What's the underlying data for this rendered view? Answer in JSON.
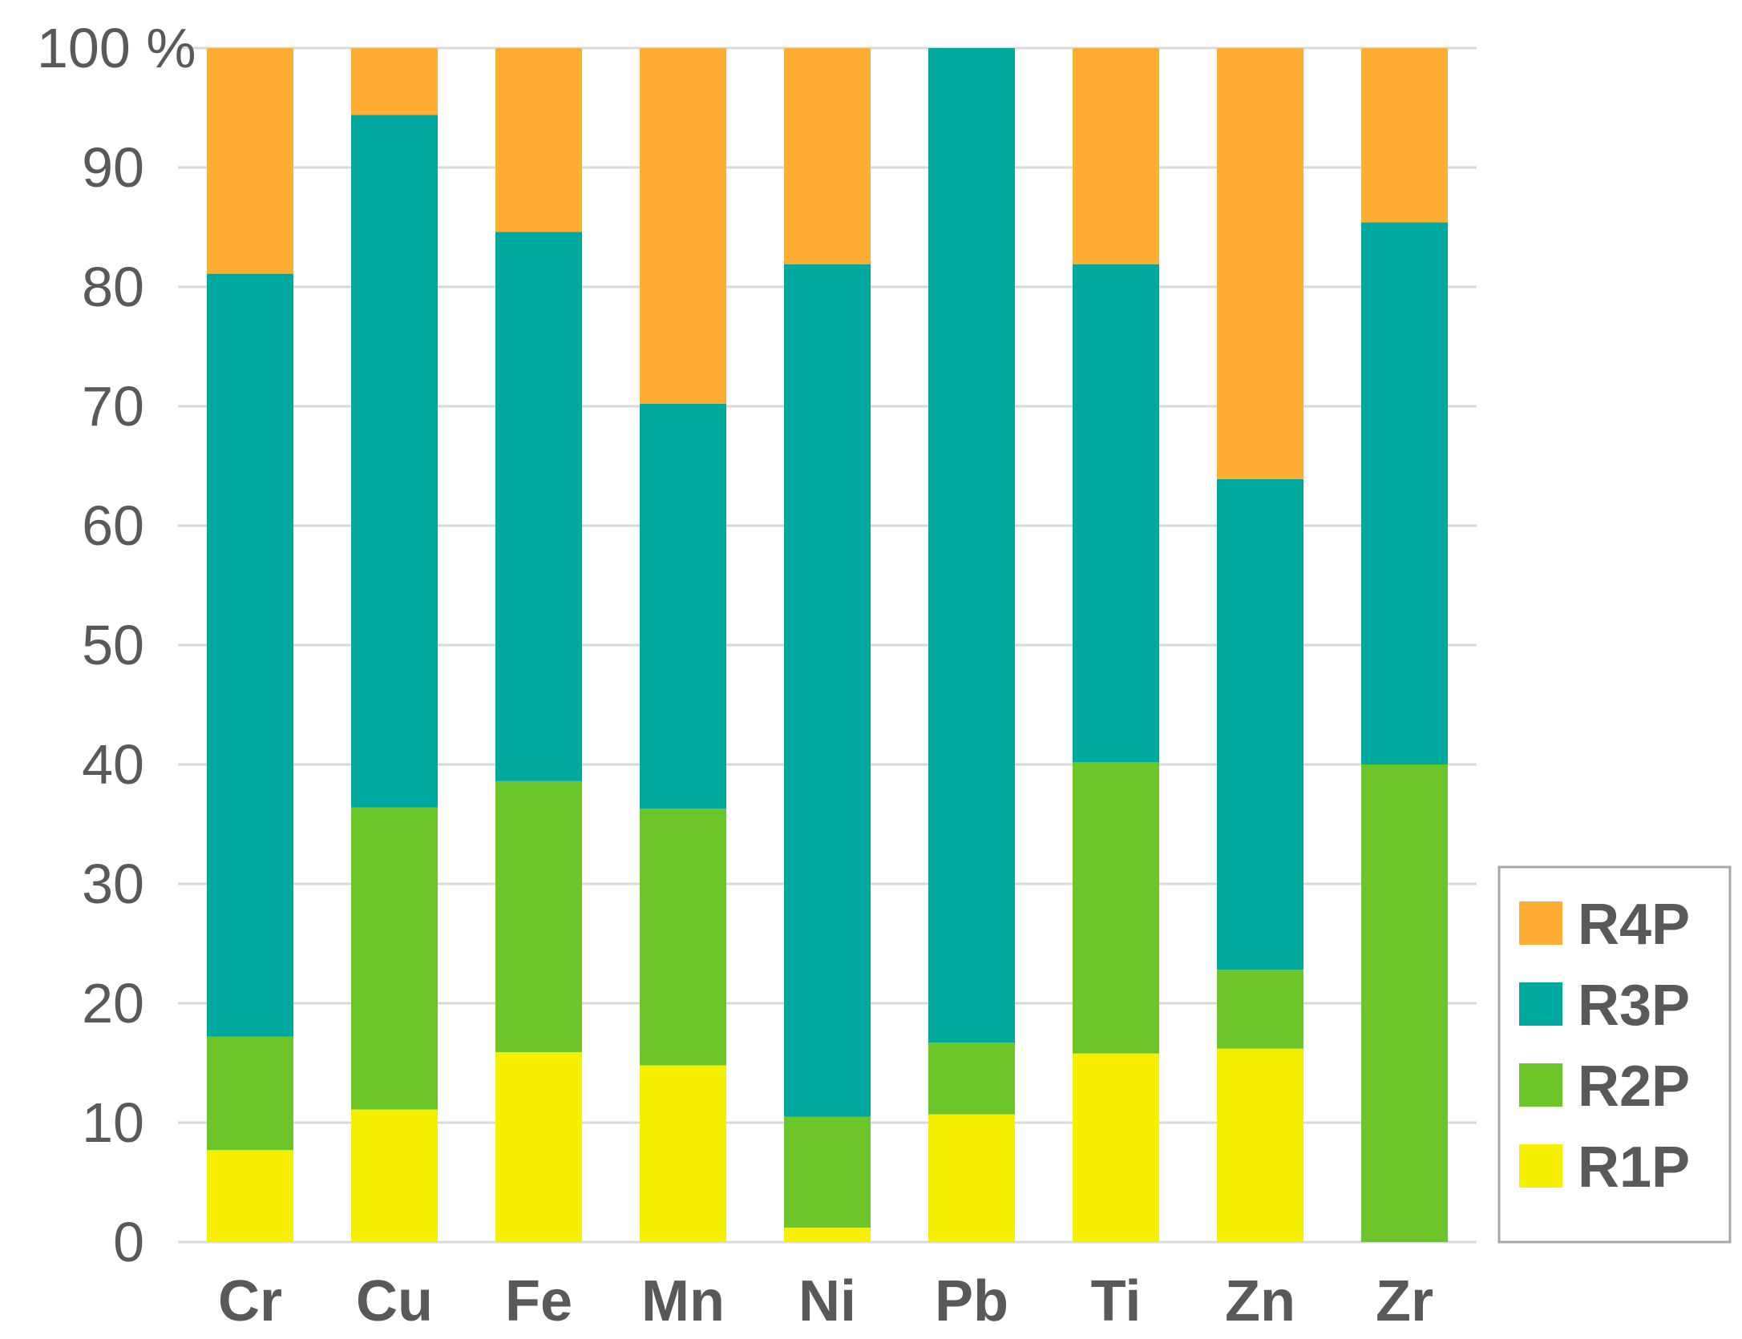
{
  "chart_data": {
    "type": "bar",
    "stacked": true,
    "categories": [
      "Cr",
      "Cu",
      "Fe",
      "Mn",
      "Ni",
      "Pb",
      "Ti",
      "Zn",
      "Zr"
    ],
    "series": [
      {
        "name": "R1P",
        "color": "#f7ef00",
        "values": [
          7.7,
          11.1,
          15.9,
          14.8,
          1.2,
          10.7,
          15.8,
          16.2,
          0
        ]
      },
      {
        "name": "R2P",
        "color": "#6cc62a",
        "values": [
          9.5,
          25.3,
          22.7,
          21.5,
          9.3,
          6.0,
          24.4,
          6.6,
          40.0
        ]
      },
      {
        "name": "R3P",
        "color": "#00a99d",
        "values": [
          63.9,
          58.0,
          46.0,
          33.9,
          71.4,
          83.3,
          41.7,
          41.1,
          45.4
        ]
      },
      {
        "name": "R4P",
        "color": "#ffad33",
        "values": [
          18.9,
          5.6,
          15.4,
          29.8,
          18.1,
          0,
          18.1,
          36.1,
          14.6
        ]
      }
    ],
    "y_ticks": [
      "0",
      "10",
      "20",
      "30",
      "40",
      "50",
      "60",
      "70",
      "80",
      "90",
      "100 %"
    ],
    "ylim": [
      0,
      100
    ],
    "legend_order": [
      "R4P",
      "R3P",
      "R2P",
      "R1P"
    ],
    "legend_position": "bottom-right",
    "grid": true
  }
}
